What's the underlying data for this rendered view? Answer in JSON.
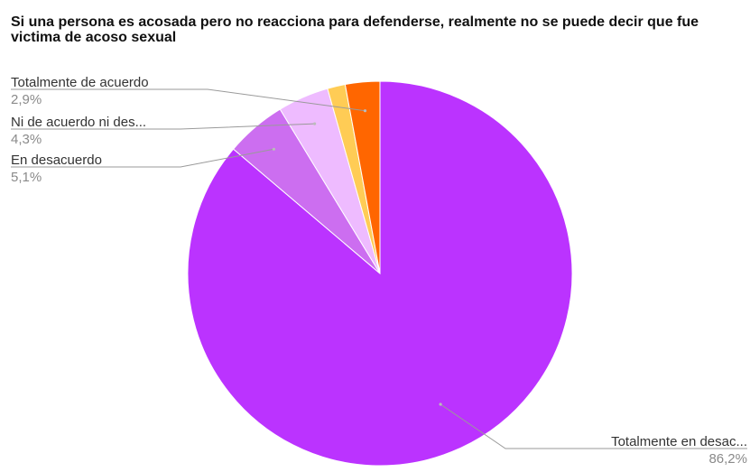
{
  "chart_data": {
    "type": "pie",
    "title": "Si una persona es acosada pero no reacciona para defenderse, realmente no se puede decir que fue victima de acoso sexual",
    "slices": [
      {
        "label": "Totalmente en desac...",
        "value": 86.2,
        "value_label": "86,2%",
        "color": "#bb33ff"
      },
      {
        "label": "En desacuerdo",
        "value": 5.1,
        "value_label": "5,1%",
        "color": "#cc6ef0"
      },
      {
        "label": "Ni de acuerdo ni des...",
        "value": 4.3,
        "value_label": "4,3%",
        "color": "#eebbff"
      },
      {
        "label": "",
        "value": 1.5,
        "value_label": "",
        "color": "#ffcc55"
      },
      {
        "label": "Totalmente de acuerdo",
        "value": 2.9,
        "value_label": "2,9%",
        "color": "#ff6600"
      }
    ],
    "legend": "none"
  }
}
